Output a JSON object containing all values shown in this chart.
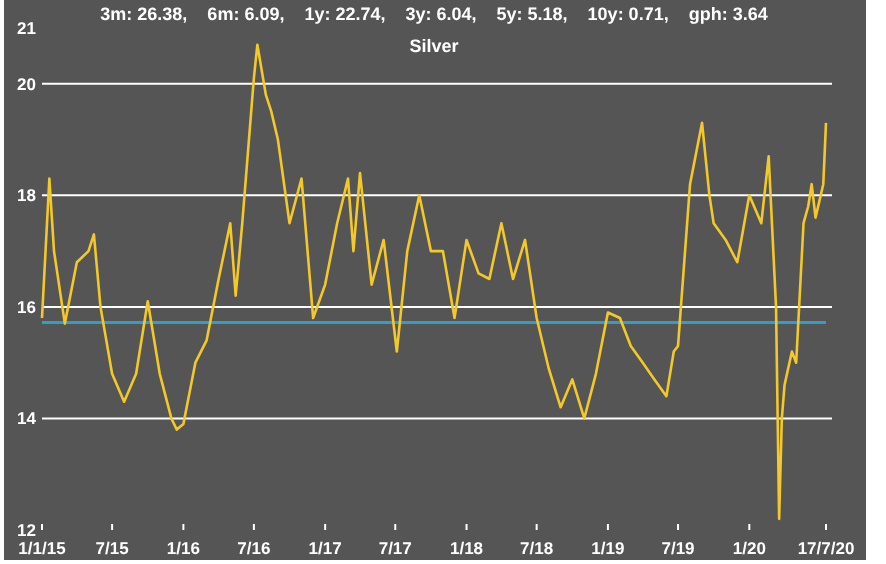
{
  "chart_data": {
    "type": "line",
    "title": "Silver",
    "subtitle": "3m: 26.38,    6m: 6.09,    1y: 22.74,    3y: 6.04,    5y: 5.18,    10y: 0.71,    gph: 3.64",
    "x": [
      "2015-01-01",
      "2015-01-20",
      "2015-02-01",
      "2015-03-01",
      "2015-04-01",
      "2015-05-01",
      "2015-05-15",
      "2015-06-01",
      "2015-07-01",
      "2015-08-01",
      "2015-09-01",
      "2015-10-01",
      "2015-11-01",
      "2015-12-01",
      "2015-12-15",
      "2016-01-01",
      "2016-02-01",
      "2016-03-01",
      "2016-04-01",
      "2016-05-01",
      "2016-05-15",
      "2016-06-01",
      "2016-07-01",
      "2016-07-10",
      "2016-08-01",
      "2016-08-15",
      "2016-09-01",
      "2016-10-01",
      "2016-11-01",
      "2016-12-01",
      "2017-01-01",
      "2017-02-01",
      "2017-03-01",
      "2017-03-15",
      "2017-04-01",
      "2017-05-01",
      "2017-06-01",
      "2017-07-05",
      "2017-08-01",
      "2017-09-01",
      "2017-10-01",
      "2017-11-01",
      "2017-12-01",
      "2018-01-01",
      "2018-02-01",
      "2018-03-01",
      "2018-04-01",
      "2018-05-01",
      "2018-06-01",
      "2018-07-01",
      "2018-08-01",
      "2018-09-01",
      "2018-10-01",
      "2018-11-01",
      "2018-12-01",
      "2019-01-01",
      "2019-02-01",
      "2019-03-01",
      "2019-04-01",
      "2019-05-01",
      "2019-06-01",
      "2019-06-20",
      "2019-07-01",
      "2019-08-01",
      "2019-09-01",
      "2019-09-20",
      "2019-10-01",
      "2019-11-01",
      "2019-12-01",
      "2020-01-01",
      "2020-02-01",
      "2020-02-20",
      "2020-03-10",
      "2020-03-18",
      "2020-03-25",
      "2020-04-01",
      "2020-04-20",
      "2020-05-01",
      "2020-05-20",
      "2020-06-01",
      "2020-06-10",
      "2020-06-20",
      "2020-07-10",
      "2020-07-17"
    ],
    "series": [
      {
        "color": "#f2c82a",
        "values": [
          15.8,
          18.3,
          17.0,
          15.7,
          16.8,
          17.0,
          17.3,
          16.0,
          14.8,
          14.3,
          14.8,
          16.1,
          14.8,
          14.0,
          13.8,
          13.9,
          15.0,
          15.4,
          16.5,
          17.5,
          16.2,
          17.5,
          20.1,
          20.7,
          19.8,
          19.5,
          19.0,
          17.5,
          18.3,
          15.8,
          16.4,
          17.5,
          18.3,
          17.0,
          18.4,
          16.4,
          17.2,
          15.2,
          17.0,
          18.0,
          17.0,
          17.0,
          15.8,
          17.2,
          16.6,
          16.5,
          17.5,
          16.5,
          17.2,
          15.8,
          14.9,
          14.2,
          14.7,
          14.0,
          14.8,
          15.9,
          15.8,
          15.3,
          15.0,
          14.7,
          14.4,
          15.2,
          15.3,
          18.2,
          19.3,
          18.0,
          17.5,
          17.2,
          16.8,
          18.0,
          17.5,
          18.7,
          16.0,
          12.2,
          14.0,
          14.6,
          15.2,
          15.0,
          17.5,
          17.8,
          18.2,
          17.6,
          18.2,
          19.3
        ]
      }
    ],
    "xlim": [
      "2015-01-01",
      "2020-07-17"
    ],
    "xticks": [
      {
        "value": "2015-01-01",
        "label": "1/1/15"
      },
      {
        "value": "2015-07-01",
        "label": "7/15"
      },
      {
        "value": "2016-01-01",
        "label": "1/16"
      },
      {
        "value": "2016-07-01",
        "label": "7/16"
      },
      {
        "value": "2017-01-01",
        "label": "1/17"
      },
      {
        "value": "2017-07-01",
        "label": "7/17"
      },
      {
        "value": "2018-01-01",
        "label": "1/18"
      },
      {
        "value": "2018-07-01",
        "label": "7/18"
      },
      {
        "value": "2019-01-01",
        "label": "1/19"
      },
      {
        "value": "2019-07-01",
        "label": "7/19"
      },
      {
        "value": "2020-01-01",
        "label": "1/20"
      },
      {
        "value": "2020-07-17",
        "label": "17/7/20"
      }
    ],
    "ylim": [
      12,
      21
    ],
    "yticks": [
      12,
      14,
      16,
      18,
      20,
      21
    ],
    "grid": "y",
    "ref_lines": [
      {
        "axis": "y",
        "value": 15.72,
        "color": "#3a9bc0"
      }
    ]
  }
}
